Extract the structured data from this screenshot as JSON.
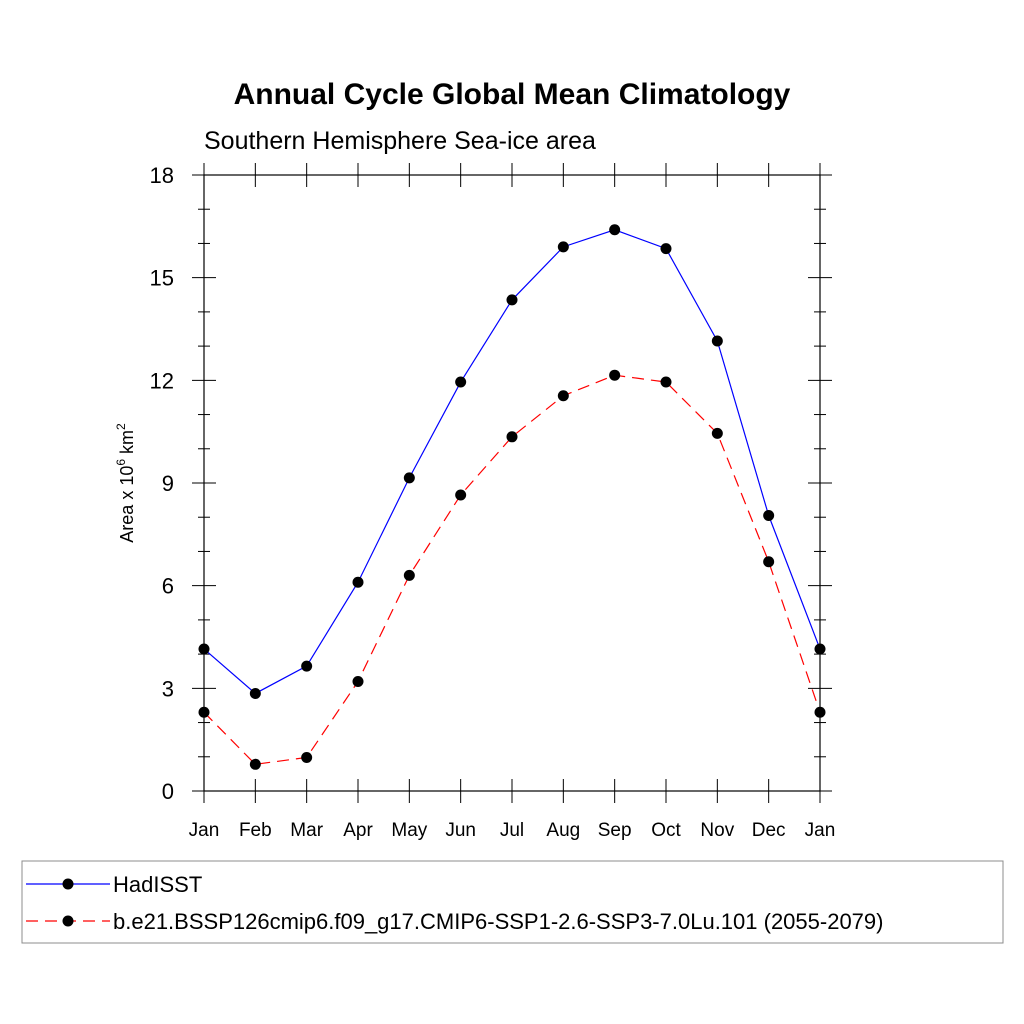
{
  "chart_data": {
    "type": "line",
    "title": "Annual Cycle Global Mean Climatology",
    "subtitle": "Southern Hemisphere Sea-ice area",
    "ylabel": {
      "base": "Area x 10",
      "exp1": "6",
      "unit": " km",
      "exp2": "2"
    },
    "xlabel": "",
    "categories": [
      "Jan",
      "Feb",
      "Mar",
      "Apr",
      "May",
      "Jun",
      "Jul",
      "Aug",
      "Sep",
      "Oct",
      "Nov",
      "Dec",
      "Jan"
    ],
    "ylim": [
      0,
      18
    ],
    "yticks": [
      0,
      3,
      6,
      9,
      12,
      15,
      18
    ],
    "yticks_minor_step": 1,
    "grid": false,
    "legend_position": "bottom",
    "series": [
      {
        "name": "HadISST",
        "color": "#0000ff",
        "line_style": "solid",
        "marker": "filled-circle",
        "values": [
          4.15,
          2.85,
          3.65,
          6.1,
          9.15,
          11.95,
          14.35,
          15.9,
          16.4,
          15.85,
          13.15,
          8.05,
          4.15
        ]
      },
      {
        "name": "b.e21.BSSP126cmip6.f09_g17.CMIP6-SSP1-2.6-SSP3-7.0Lu.101 (2055-2079)",
        "color": "#ff0000",
        "line_style": "dashed",
        "marker": "filled-circle",
        "values": [
          2.3,
          0.78,
          0.98,
          3.2,
          6.3,
          8.65,
          10.35,
          11.55,
          12.15,
          11.95,
          10.45,
          6.7,
          2.3
        ]
      }
    ]
  }
}
